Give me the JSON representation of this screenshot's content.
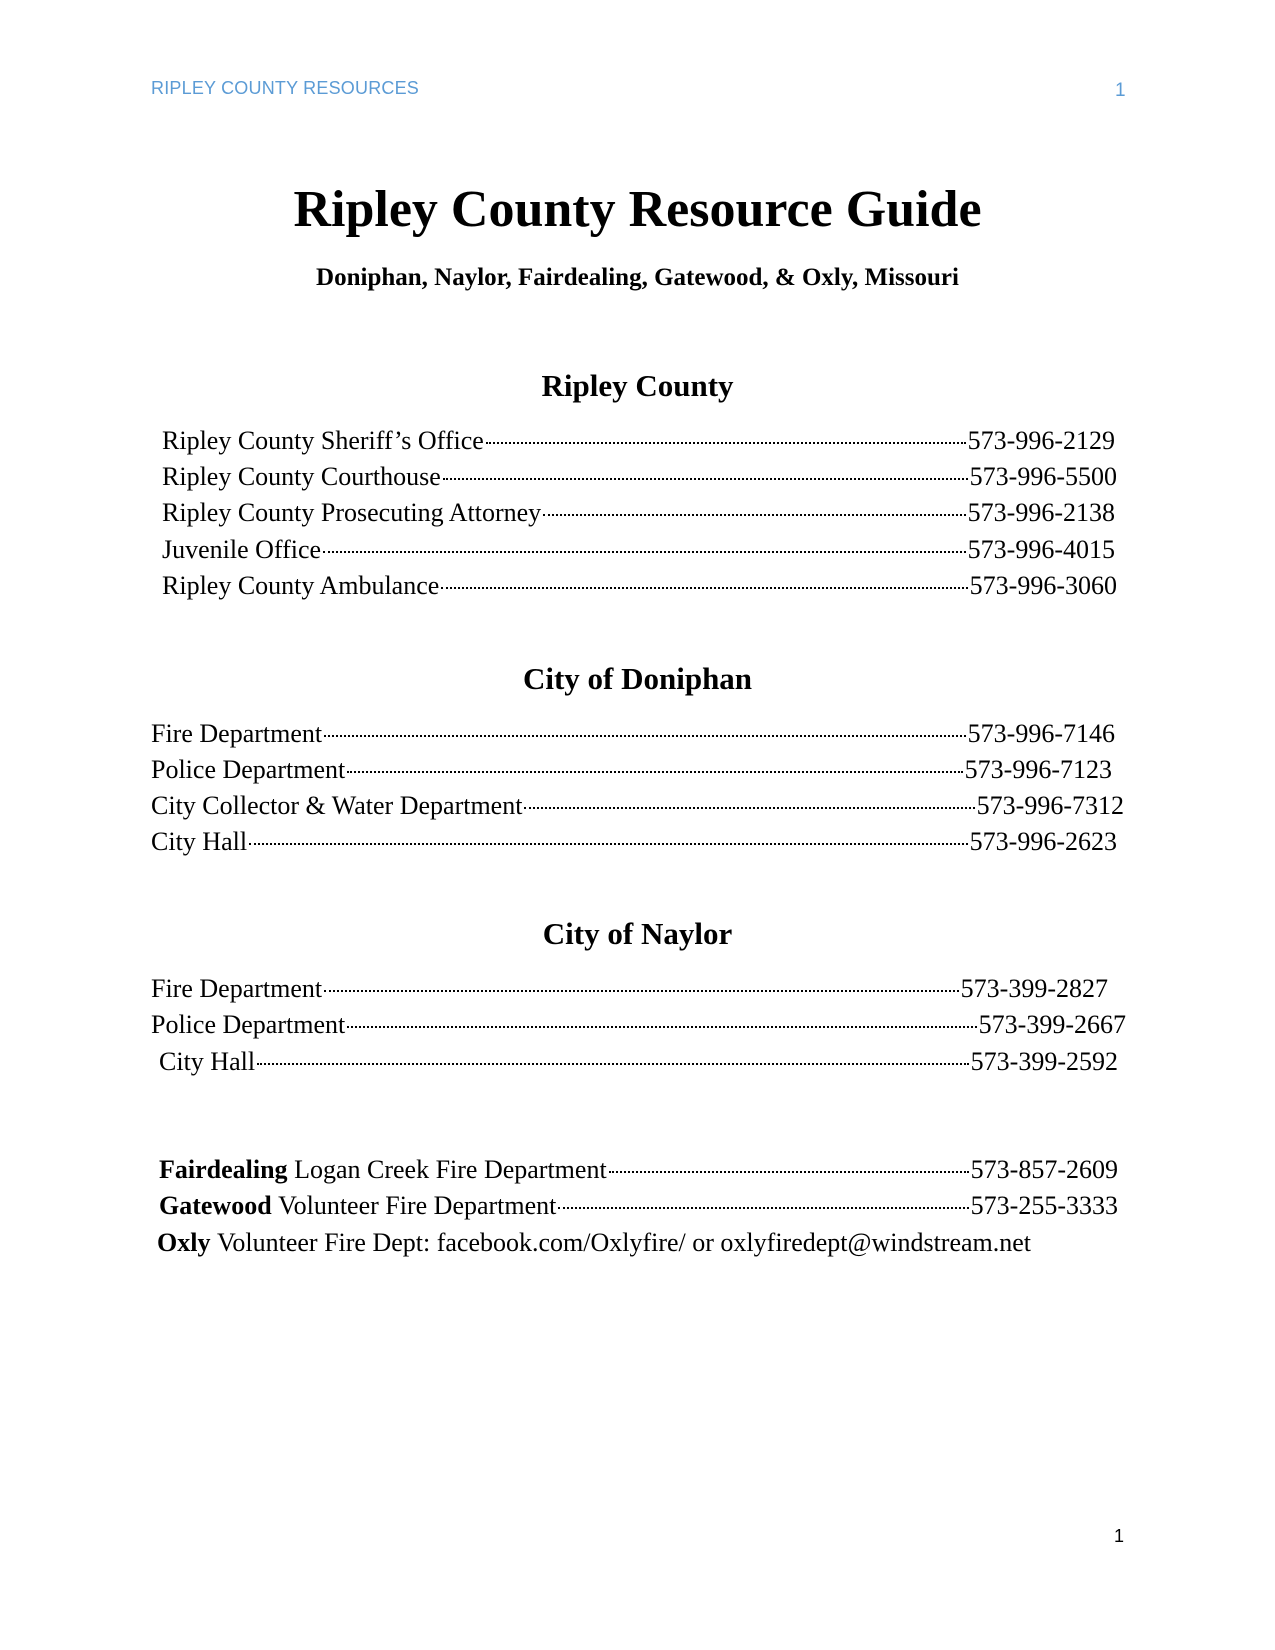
{
  "header": {
    "running_title": "RIPLEY COUNTY RESOURCES",
    "page_number": "1"
  },
  "title": "Ripley County Resource Guide",
  "subtitle": "Doniphan, Naylor, Fairdealing, Gatewood, & Oxly, Missouri",
  "sections": [
    {
      "heading": "Ripley County",
      "entries": [
        {
          "name": "Ripley County Sheriff’s Office",
          "phone": "573-996-2129"
        },
        {
          "name": "Ripley County Courthouse",
          "phone": "573-996-5500"
        },
        {
          "name": "Ripley County Prosecuting Attorney",
          "phone": "573-996-2138"
        },
        {
          "name": "Juvenile Office",
          "phone": "573-996-4015"
        },
        {
          "name": "Ripley County Ambulance",
          "phone": "573-996-3060"
        }
      ]
    },
    {
      "heading": "City of Doniphan",
      "entries": [
        {
          "name": "Fire Department",
          "phone": "573-996-7146"
        },
        {
          "name": "Police Department",
          "phone": "573-996-7123"
        },
        {
          "name": "City Collector & Water Department",
          "phone": "573-996-7312"
        },
        {
          "name": "City Hall",
          "phone": "573-996-2623"
        }
      ]
    },
    {
      "heading": "City of Naylor",
      "entries": [
        {
          "name": "Fire Department",
          "phone": "573-399-2827"
        },
        {
          "name": "Police Department",
          "phone": "573-399-2667"
        },
        {
          "name": "City Hall",
          "phone": "573-399-2592"
        }
      ]
    }
  ],
  "other": [
    {
      "town": "Fairdealing",
      "name": "Logan Creek Fire Department",
      "phone": "573-857-2609"
    },
    {
      "town": "Gatewood",
      "name": "Volunteer Fire Department",
      "phone": "573-255-3333"
    },
    {
      "town": "Oxly",
      "name": "Volunteer Fire Dept: facebook.com/Oxlyfire/ or oxlyfiredept@windstream.net"
    }
  ],
  "footer": {
    "page_number": "1"
  }
}
